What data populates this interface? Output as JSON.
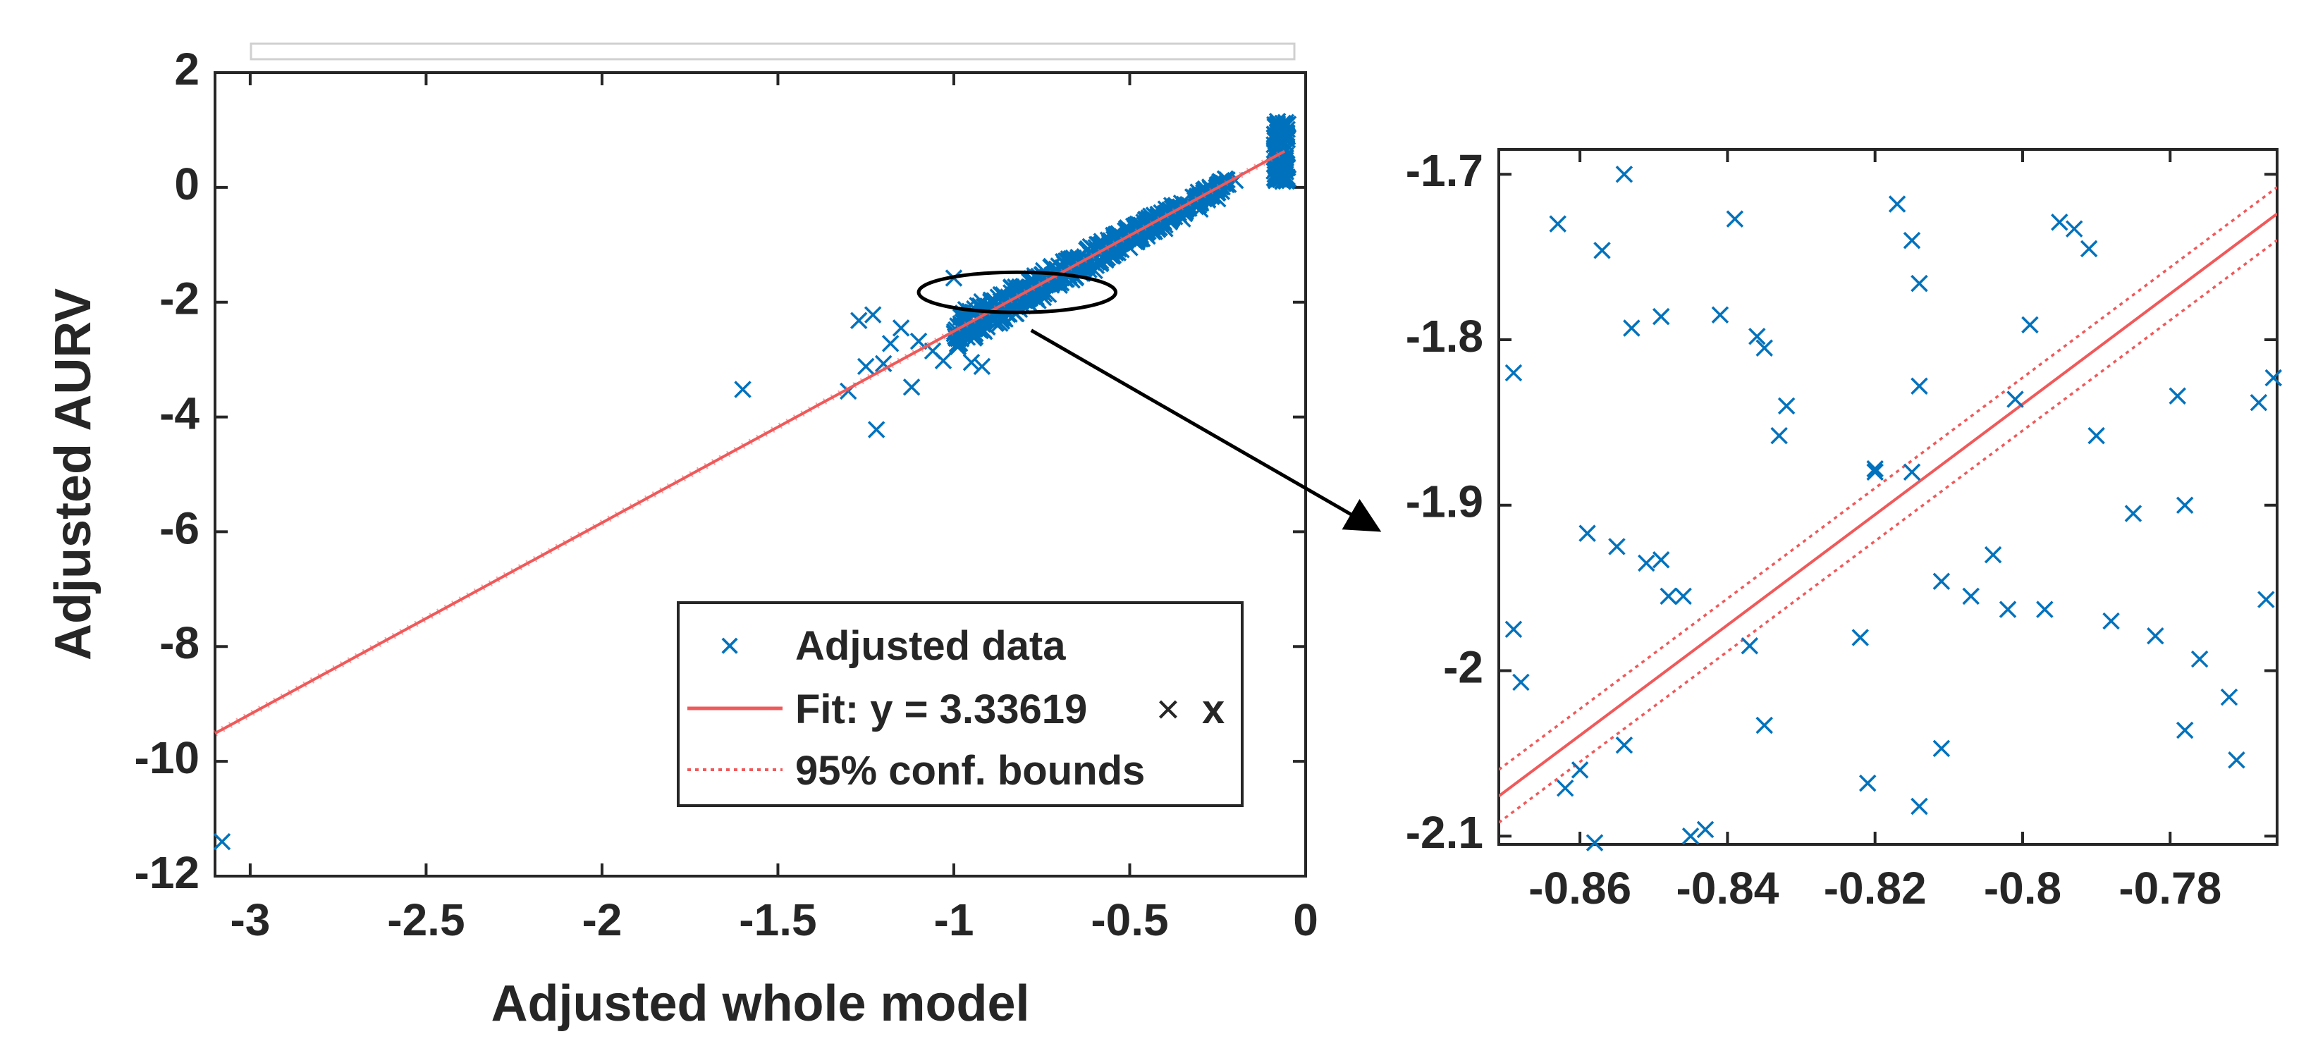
{
  "chart_data": [
    {
      "id": "main",
      "type": "scatter",
      "title": "",
      "xlabel": "Adjusted whole model",
      "ylabel": "Adjusted AURV",
      "xlim": [
        -3.1,
        0
      ],
      "ylim": [
        -12,
        2
      ],
      "xticks": [
        -3,
        -2.5,
        -2,
        -1.5,
        -1,
        -0.5,
        0
      ],
      "xtick_labels": [
        "-3",
        "-2.5",
        "-2",
        "-1.5",
        "-1",
        "-0.5",
        "0"
      ],
      "yticks": [
        2,
        0,
        -2,
        -4,
        -6,
        -8,
        -10,
        -12
      ],
      "ytick_labels": [
        "2",
        "0",
        "-2",
        "-4",
        "-6",
        "-8",
        "-10",
        "-12"
      ],
      "grid": false,
      "fit": {
        "slope": 3.33619,
        "intercept": 0.83,
        "x_range": [
          -3.1,
          -0.06
        ]
      },
      "legend": {
        "placement": "bottom-right",
        "entries": [
          "Adjusted data",
          "Fit: y = 3.33619",
          "95% conf. bounds"
        ],
        "fit_suffix_symbol": "×",
        "fit_suffix_var": "x"
      },
      "callout": {
        "center": [
          -0.82,
          -2.0
        ],
        "rx": 0.28,
        "ry": 0.35
      },
      "points": [
        [
          -3.08,
          -11.4
        ],
        [
          -1.6,
          -3.52
        ],
        [
          -1.3,
          -3.55
        ],
        [
          -1.27,
          -2.32
        ],
        [
          -1.25,
          -3.12
        ],
        [
          -1.23,
          -2.22
        ],
        [
          -1.22,
          -4.22
        ],
        [
          -1.2,
          -3.07
        ],
        [
          -1.18,
          -2.72
        ],
        [
          -1.15,
          -2.45
        ],
        [
          -1.12,
          -3.48
        ],
        [
          -1.1,
          -2.68
        ],
        [
          -1.06,
          -2.85
        ],
        [
          -1.03,
          -3.02
        ],
        [
          -1.0,
          -1.58
        ],
        [
          -0.98,
          -2.62
        ],
        [
          -0.95,
          -3.05
        ],
        [
          -0.92,
          -3.12
        ],
        [
          -0.6,
          -1.45
        ],
        [
          -0.55,
          -1.2
        ],
        [
          -0.5,
          -1.05
        ],
        [
          -0.45,
          -0.85
        ],
        [
          -0.4,
          -0.72
        ],
        [
          -0.35,
          -0.55
        ],
        [
          -0.3,
          -0.38
        ],
        [
          -0.25,
          -0.2
        ],
        [
          -0.22,
          0.05
        ],
        [
          -0.2,
          0.12
        ],
        [
          -0.08,
          1.15
        ],
        [
          -0.08,
          0.95
        ],
        [
          -0.08,
          0.75
        ],
        [
          -0.08,
          0.5
        ],
        [
          -0.08,
          0.25
        ],
        [
          -0.07,
          1.05
        ],
        [
          -0.07,
          0.6
        ],
        [
          -0.06,
          0.85
        ],
        [
          -0.06,
          0.35
        ],
        [
          -0.05,
          1.1
        ],
        [
          -0.05,
          0.15
        ]
      ]
    },
    {
      "id": "zoom",
      "type": "scatter",
      "title": "",
      "xlabel": "",
      "ylabel": "",
      "xlim": [
        -0.871,
        -0.7655
      ],
      "ylim": [
        -2.105,
        -1.685
      ],
      "xticks": [
        -0.86,
        -0.84,
        -0.82,
        -0.8,
        -0.78
      ],
      "xtick_labels": [
        "-0.86",
        "-0.84",
        "-0.82",
        "-0.8",
        "-0.78"
      ],
      "yticks": [
        -1.7,
        -1.8,
        -1.9,
        -2,
        -2.1
      ],
      "ytick_labels": [
        "-1.7",
        "-1.8",
        "-1.9",
        "-2",
        "-2.1"
      ],
      "grid": false,
      "fit_slope": 3.33619,
      "fit_intercept": 0.83,
      "conf_offset": 0.016,
      "points": [
        [
          -0.869,
          -1.82
        ],
        [
          -0.869,
          -1.975
        ],
        [
          -0.868,
          -2.007
        ],
        [
          -0.863,
          -1.73
        ],
        [
          -0.862,
          -2.071
        ],
        [
          -0.86,
          -2.06
        ],
        [
          -0.859,
          -1.917
        ],
        [
          -0.858,
          -2.104
        ],
        [
          -0.857,
          -1.746
        ],
        [
          -0.855,
          -1.925
        ],
        [
          -0.854,
          -2.045
        ],
        [
          -0.854,
          -1.7
        ],
        [
          -0.853,
          -1.793
        ],
        [
          -0.851,
          -1.935
        ],
        [
          -0.849,
          -1.933
        ],
        [
          -0.849,
          -1.786
        ],
        [
          -0.848,
          -1.955
        ],
        [
          -0.846,
          -1.955
        ],
        [
          -0.845,
          -2.1
        ],
        [
          -0.843,
          -2.096
        ],
        [
          -0.841,
          -1.785
        ],
        [
          -0.839,
          -1.727
        ],
        [
          -0.837,
          -1.985
        ],
        [
          -0.836,
          -1.798
        ],
        [
          -0.835,
          -1.805
        ],
        [
          -0.835,
          -2.033
        ],
        [
          -0.833,
          -1.858
        ],
        [
          -0.832,
          -1.84
        ],
        [
          -0.822,
          -1.98
        ],
        [
          -0.821,
          -2.068
        ],
        [
          -0.82,
          -1.878
        ],
        [
          -0.82,
          -1.88
        ],
        [
          -0.817,
          -1.718
        ],
        [
          -0.815,
          -1.74
        ],
        [
          -0.815,
          -1.88
        ],
        [
          -0.814,
          -1.828
        ],
        [
          -0.814,
          -2.082
        ],
        [
          -0.814,
          -1.766
        ],
        [
          -0.811,
          -1.946
        ],
        [
          -0.811,
          -2.047
        ],
        [
          -0.807,
          -1.955
        ],
        [
          -0.804,
          -1.93
        ],
        [
          -0.802,
          -1.963
        ],
        [
          -0.801,
          -1.836
        ],
        [
          -0.799,
          -1.791
        ],
        [
          -0.797,
          -1.963
        ],
        [
          -0.795,
          -1.729
        ],
        [
          -0.793,
          -1.733
        ],
        [
          -0.791,
          -1.745
        ],
        [
          -0.79,
          -1.858
        ],
        [
          -0.788,
          -1.97
        ],
        [
          -0.785,
          -1.905
        ],
        [
          -0.782,
          -1.979
        ],
        [
          -0.779,
          -1.834
        ],
        [
          -0.778,
          -2.036
        ],
        [
          -0.778,
          -1.9
        ],
        [
          -0.776,
          -1.993
        ],
        [
          -0.772,
          -2.016
        ],
        [
          -0.771,
          -2.054
        ],
        [
          -0.768,
          -1.838
        ],
        [
          -0.767,
          -1.957
        ],
        [
          -0.766,
          -1.823
        ]
      ]
    }
  ],
  "colors": {
    "data": "#0072bd",
    "fit": "#f0595a",
    "axis": "#262626",
    "legend_border": "#262626",
    "title_box": "#d0d0d0"
  }
}
